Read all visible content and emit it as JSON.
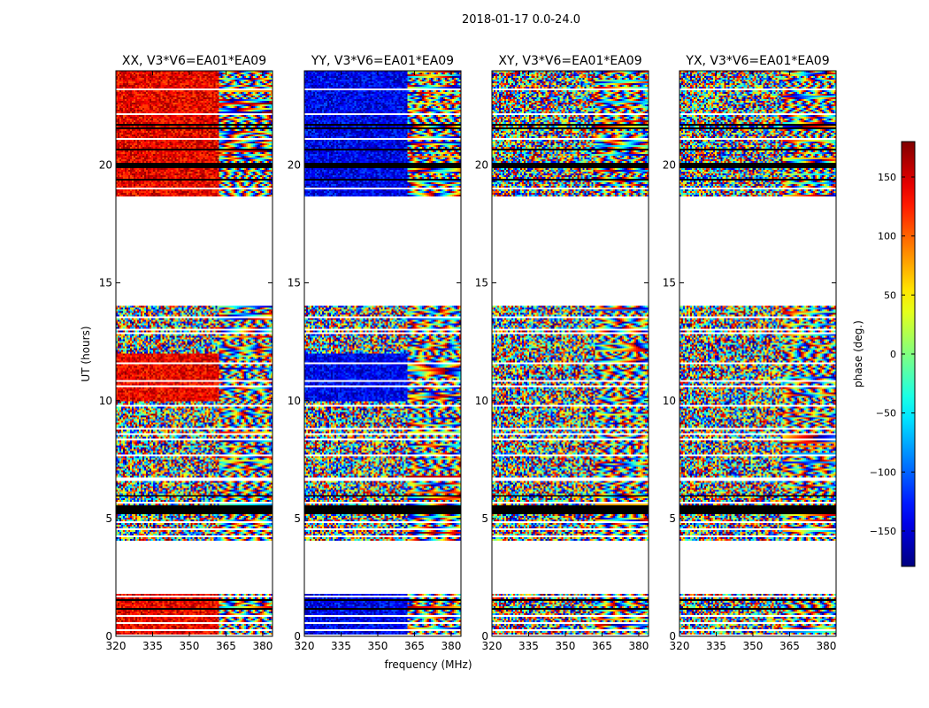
{
  "figure_title": "2018-01-17 0.0-24.0",
  "chart_data": {
    "type": "heatmap",
    "suptitle": "2018-01-17 0.0-24.0",
    "xlabel": "frequency (MHz)",
    "ylabel": "UT (hours)",
    "xlim": [
      320,
      384
    ],
    "ylim": [
      0,
      24
    ],
    "xticks": [
      320,
      335,
      350,
      365,
      380
    ],
    "yticks": [
      0,
      5,
      10,
      15,
      20
    ],
    "panels": [
      {
        "title": "XX, V3*V6=EA01*EA09",
        "pol": "XX",
        "bias_deg": 140
      },
      {
        "title": "YY, V3*V6=EA01*EA09",
        "pol": "YY",
        "bias_deg": -140
      },
      {
        "title": "XY, V3*V6=EA01*EA09",
        "pol": "XY",
        "bias_deg": null
      },
      {
        "title": "YX, V3*V6=EA01*EA09",
        "pol": "YX",
        "bias_deg": null
      }
    ],
    "data_time_ranges_hours": [
      [
        0.05,
        1.8
      ],
      [
        4.0,
        6.5
      ],
      [
        6.5,
        14.0
      ],
      [
        18.7,
        24.0
      ]
    ],
    "flagged_time_ranges_hours": [
      [
        5.2,
        5.55
      ],
      [
        19.9,
        20.1
      ]
    ],
    "colorbar": {
      "label": "phase (deg.)",
      "range": [
        -180,
        180
      ],
      "ticks": [
        -150,
        -100,
        -50,
        0,
        50,
        100,
        150
      ],
      "colormap": "jet"
    }
  }
}
